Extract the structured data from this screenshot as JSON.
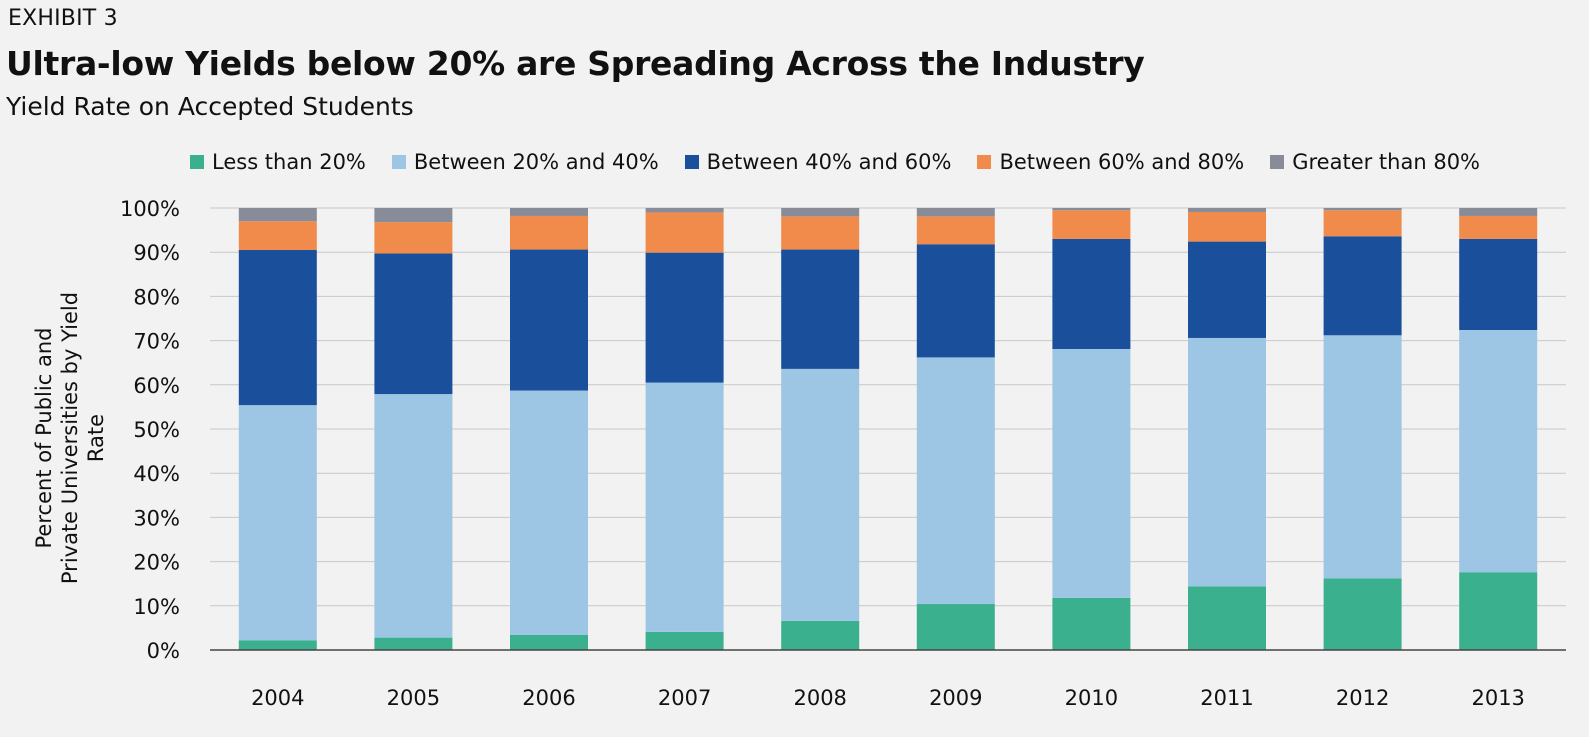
{
  "header": {
    "exhibit": "EXHIBIT 3",
    "title": "Ultra-low Yields below 20% are Spreading Across the Industry",
    "subtitle": "Yield Rate on Accepted Students"
  },
  "chart_data": {
    "type": "bar",
    "stacked": true,
    "title": "Ultra-low Yields below 20% are Spreading Across the Industry",
    "subtitle": "Yield Rate on Accepted Students",
    "xlabel": "",
    "ylabel_lines": [
      "Percent of Public and",
      "Private Universities by Yield Rate"
    ],
    "ylim": [
      0,
      100
    ],
    "yticks": [
      "0%",
      "10%",
      "20%",
      "30%",
      "40%",
      "50%",
      "60%",
      "70%",
      "80%",
      "90%",
      "100%"
    ],
    "grid": true,
    "legend_position": "top",
    "categories": [
      "2004",
      "2005",
      "2006",
      "2007",
      "2008",
      "2009",
      "2010",
      "2011",
      "2012",
      "2013"
    ],
    "series": [
      {
        "name": "Less than 20%",
        "color": "#3bb08f",
        "values": [
          2.2,
          2.8,
          3.4,
          4.1,
          6.6,
          10.4,
          11.8,
          14.4,
          16.2,
          17.6
        ]
      },
      {
        "name": "Between 20% and 40%",
        "color": "#9dc6e4",
        "values": [
          53.2,
          55.1,
          55.3,
          56.4,
          57.0,
          55.8,
          56.3,
          56.2,
          55.0,
          54.8
        ]
      },
      {
        "name": "Between 40% and 60%",
        "color": "#1a4f9c",
        "values": [
          35.1,
          31.8,
          31.9,
          29.4,
          27.0,
          25.6,
          24.9,
          21.8,
          22.4,
          20.6
        ]
      },
      {
        "name": "Between 60% and 80%",
        "color": "#f08b4b",
        "values": [
          6.5,
          7.1,
          7.6,
          9.1,
          7.5,
          6.3,
          6.5,
          6.7,
          5.9,
          5.2
        ]
      },
      {
        "name": "Greater than 80%",
        "color": "#888c99",
        "values": [
          3.0,
          3.2,
          1.8,
          1.0,
          1.9,
          1.9,
          0.5,
          0.9,
          0.5,
          1.8
        ]
      }
    ]
  }
}
